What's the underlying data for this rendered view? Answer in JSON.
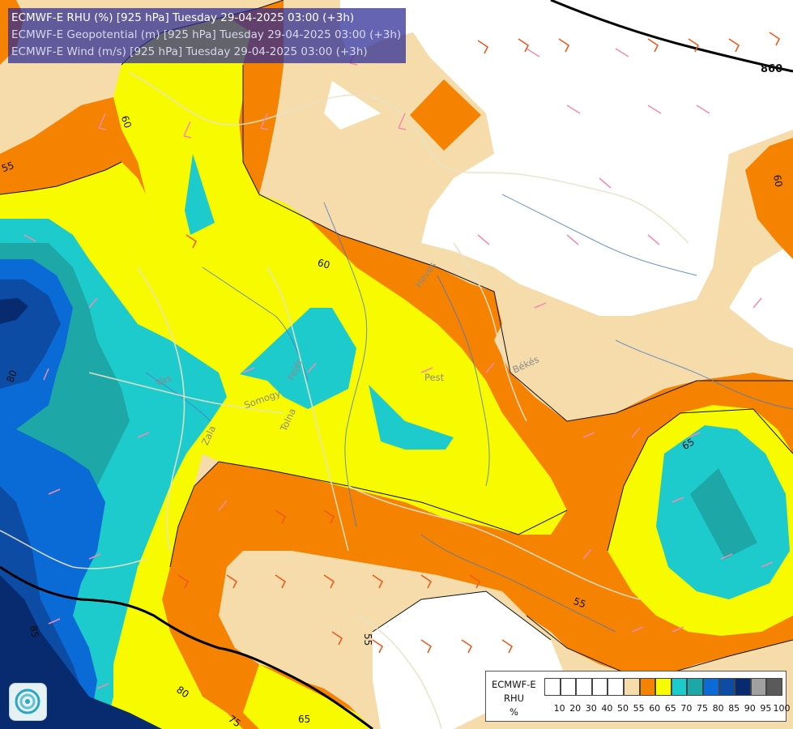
{
  "header": {
    "line1": "ECMWF-E RHU (%) [925 hPa] Tuesday 29-04-2025 03:00 (+3h)",
    "line2": "ECMWF-E Geopotential (m) [925 hPa] Tuesday 29-04-2025 03:00 (+3h)",
    "line3": "ECMWF-E Wind (m/s) [925 hPa] Tuesday 29-04-2025 03:00 (+3h)"
  },
  "map": {
    "rhu_contour_labels": [
      "60",
      "55",
      "60",
      "60",
      "80",
      "65",
      "55",
      "85",
      "80",
      "75",
      "65",
      "55"
    ],
    "geopotential_label": "860",
    "place_labels": [
      "Heves",
      "Pest",
      "Békés",
      "Somogy",
      "Vas",
      "Zala",
      "Tolna",
      "Fejér"
    ]
  },
  "legend": {
    "title": "ECMWF-E",
    "variable": "RHU",
    "unit": "%",
    "ticks": [
      "10",
      "20",
      "30",
      "40",
      "50",
      "55",
      "60",
      "65",
      "70",
      "75",
      "80",
      "85",
      "90",
      "95",
      "100"
    ],
    "colors": [
      "#ffffff",
      "#ffffff",
      "#ffffff",
      "#ffffff",
      "#ffffff",
      "#f5dcaa",
      "#f58200",
      "#f8fa00",
      "#1ecbcc",
      "#1da7a7",
      "#0a6bd6",
      "#0c4ca4",
      "#082a6e",
      "#a0a0a0",
      "#5a5a5a"
    ]
  },
  "colors": {
    "rh_50": "#ffffff",
    "rh_55": "#f5dcaa",
    "rh_60": "#f58200",
    "rh_65": "#f8fa00",
    "rh_70": "#1ecbcc",
    "rh_75": "#1da7a7",
    "rh_80": "#0a6bd6",
    "rh_85": "#0c4ca4",
    "rh_90": "#082a6e",
    "wind_barb_light": "#f28bb0",
    "wind_barb_strong": "#ee5a1c",
    "rivers": "#4a78c4",
    "borders": "#e8e2c8"
  }
}
